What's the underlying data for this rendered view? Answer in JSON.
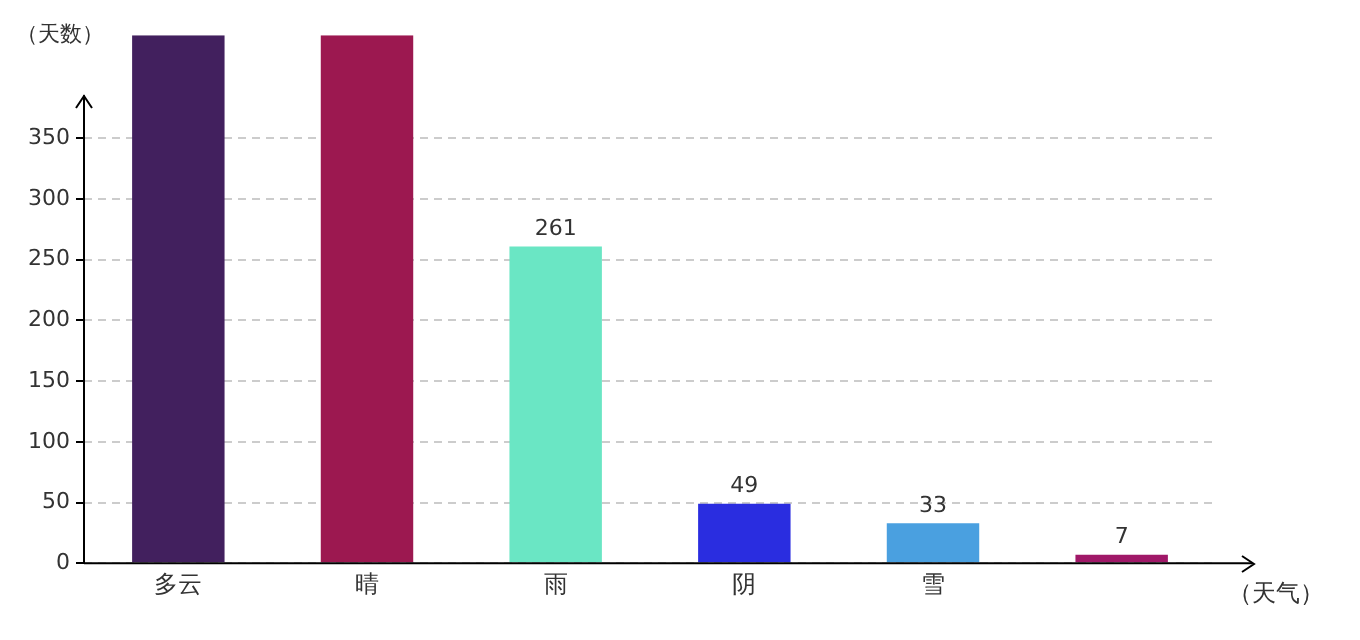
{
  "chart_data": {
    "type": "bar",
    "categories": [
      "多云",
      "晴",
      "雨",
      "阴",
      "雪",
      null
    ],
    "values": [
      435,
      435,
      261,
      49,
      33,
      7
    ],
    "value_labels": [
      null,
      null,
      "261",
      "49",
      "33",
      "7"
    ],
    "colors": [
      "#42205e",
      "#9c1850",
      "#6ae6c4",
      "#2a2de0",
      "#4aa0e0",
      "#a01868"
    ],
    "ylabel": "（天数）",
    "xlabel": "（天气）",
    "ylim": [
      0,
      435
    ],
    "yticks": [
      0,
      50,
      100,
      150,
      200,
      250,
      300,
      350
    ],
    "grid": "y"
  }
}
